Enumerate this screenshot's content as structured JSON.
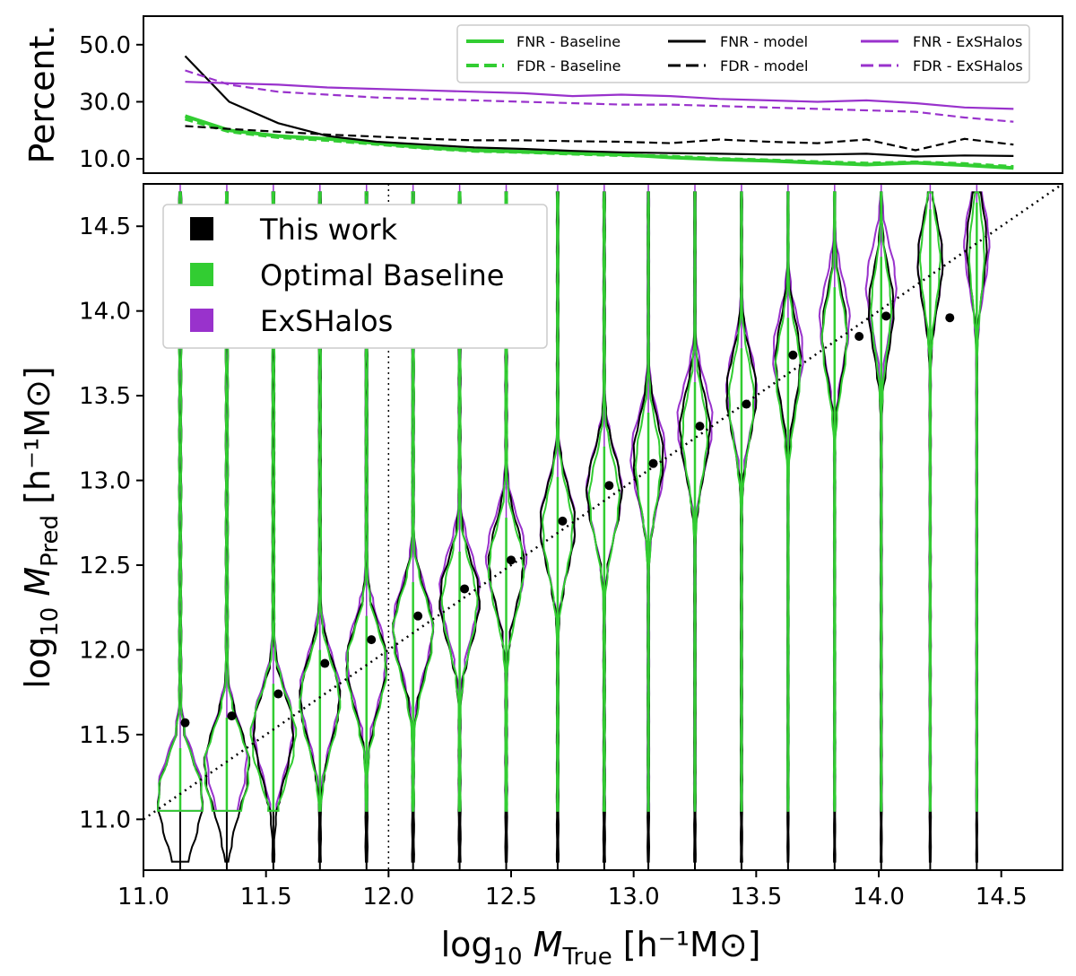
{
  "chart_data": [
    {
      "type": "line",
      "ylabel": "Percent.",
      "xlim": [
        11.0,
        14.75
      ],
      "ylim": [
        5.0,
        60.0
      ],
      "yticks": [
        "10.0",
        "30.0",
        "50.0"
      ],
      "legend": {
        "placement": "top-right",
        "columns": 3
      },
      "colors": {
        "baseline": "#32CD32",
        "model": "#000000",
        "exshalos": "#9932CC"
      },
      "series": [
        {
          "name": "FNR - Baseline",
          "color": "#32CD32",
          "style": "solid",
          "x": [
            11.17,
            11.35,
            11.55,
            11.75,
            11.95,
            12.15,
            12.35,
            12.55,
            12.75,
            12.95,
            13.15,
            13.35,
            13.55,
            13.75,
            13.95,
            14.15,
            14.35,
            14.55
          ],
          "y": [
            25.0,
            20.0,
            18.0,
            17.0,
            15.5,
            14.0,
            13.0,
            12.5,
            12.0,
            11.5,
            10.5,
            9.8,
            9.3,
            8.6,
            8.0,
            8.6,
            7.8,
            6.8
          ]
        },
        {
          "name": "FDR - Baseline",
          "color": "#32CD32",
          "style": "dashed",
          "x": [
            11.17,
            11.35,
            11.55,
            11.75,
            11.95,
            12.15,
            12.35,
            12.55,
            12.75,
            12.95,
            13.15,
            13.35,
            13.55,
            13.75,
            13.95,
            14.15,
            14.35,
            14.55
          ],
          "y": [
            24.0,
            19.6,
            17.6,
            16.6,
            15.2,
            13.8,
            12.8,
            12.4,
            11.8,
            11.3,
            10.8,
            10.0,
            9.5,
            8.9,
            8.4,
            8.8,
            8.2,
            7.2
          ]
        },
        {
          "name": "FNR - model",
          "color": "#000000",
          "style": "solid",
          "x": [
            11.17,
            11.35,
            11.55,
            11.75,
            11.95,
            12.15,
            12.35,
            12.55,
            12.75,
            12.95,
            13.15,
            13.35,
            13.55,
            13.75,
            13.95,
            14.15,
            14.35,
            14.55
          ],
          "y": [
            46.0,
            30.0,
            22.5,
            18.0,
            16.0,
            15.0,
            14.0,
            13.5,
            12.8,
            12.3,
            12.0,
            11.8,
            11.5,
            11.5,
            11.8,
            10.8,
            11.2,
            11.0
          ]
        },
        {
          "name": "FDR - model",
          "color": "#000000",
          "style": "dashed",
          "x": [
            11.17,
            11.35,
            11.55,
            11.75,
            11.95,
            12.15,
            12.35,
            12.55,
            12.75,
            12.95,
            13.15,
            13.35,
            13.55,
            13.75,
            13.95,
            14.15,
            14.35,
            14.55
          ],
          "y": [
            21.5,
            20.5,
            19.5,
            18.5,
            17.8,
            17.0,
            16.5,
            16.5,
            16.2,
            16.0,
            15.5,
            16.8,
            16.0,
            15.5,
            16.8,
            13.0,
            17.0,
            15.0
          ]
        },
        {
          "name": "FNR - ExSHalos",
          "color": "#9932CC",
          "style": "solid",
          "x": [
            11.17,
            11.35,
            11.55,
            11.75,
            11.95,
            12.15,
            12.35,
            12.55,
            12.75,
            12.95,
            13.15,
            13.35,
            13.55,
            13.75,
            13.95,
            14.15,
            14.35,
            14.55
          ],
          "y": [
            37.0,
            36.5,
            36.0,
            35.0,
            34.5,
            34.0,
            33.5,
            33.0,
            32.0,
            32.5,
            32.0,
            31.0,
            30.5,
            30.0,
            30.5,
            29.5,
            28.0,
            27.5
          ]
        },
        {
          "name": "FDR - ExSHalos",
          "color": "#9932CC",
          "style": "dashed",
          "x": [
            11.17,
            11.35,
            11.55,
            11.75,
            11.95,
            12.15,
            12.35,
            12.55,
            12.75,
            12.95,
            13.15,
            13.35,
            13.55,
            13.75,
            13.95,
            14.15,
            14.35,
            14.55
          ],
          "y": [
            41.0,
            36.0,
            33.5,
            32.5,
            31.5,
            31.0,
            30.5,
            30.0,
            29.5,
            29.0,
            29.0,
            28.5,
            28.0,
            27.5,
            27.0,
            26.5,
            24.5,
            23.0
          ]
        }
      ]
    },
    {
      "type": "violin",
      "xlabel_text": "log",
      "xlabel_sub": "10",
      "xlabel_mid": " M",
      "xlabel_msub": "True",
      "xlabel_units": " [h⁻¹M⊙]",
      "ylabel_text": "log",
      "ylabel_sub": "10",
      "ylabel_mid": " M",
      "ylabel_msub": "Pred",
      "ylabel_units": " [h⁻¹M⊙]",
      "xlim": [
        11.0,
        14.75
      ],
      "ylim": [
        10.7,
        14.75
      ],
      "xticks": [
        "11.0",
        "11.5",
        "12.0",
        "12.5",
        "13.0",
        "13.5",
        "14.0",
        "14.5"
      ],
      "yticks": [
        "11.0",
        "11.5",
        "12.0",
        "12.5",
        "13.0",
        "13.5",
        "14.0",
        "14.5"
      ],
      "reference_line": {
        "style": "dotted",
        "slope": 1,
        "from": [
          11.0,
          11.0
        ],
        "to": [
          14.75,
          14.75
        ]
      },
      "vertical_marker": {
        "x": 12.0,
        "style": "dotted"
      },
      "legend": {
        "placement": "top-left",
        "entries": [
          {
            "label": "This work",
            "color": "#000000"
          },
          {
            "label": "Optimal Baseline",
            "color": "#32CD32"
          },
          {
            "label": "ExSHalos",
            "color": "#9932CC"
          }
        ]
      },
      "bins": [
        11.15,
        11.34,
        11.53,
        11.72,
        11.91,
        12.1,
        12.29,
        12.48,
        12.69,
        12.88,
        13.06,
        13.25,
        13.44,
        13.63,
        13.82,
        14.01,
        14.21,
        14.4
      ],
      "medians_this_work": [
        {
          "x": 11.17,
          "y": 11.57
        },
        {
          "x": 11.36,
          "y": 11.61
        },
        {
          "x": 11.55,
          "y": 11.74
        },
        {
          "x": 11.74,
          "y": 11.92
        },
        {
          "x": 11.93,
          "y": 12.06
        },
        {
          "x": 12.12,
          "y": 12.2
        },
        {
          "x": 12.31,
          "y": 12.36
        },
        {
          "x": 12.5,
          "y": 12.53
        },
        {
          "x": 12.71,
          "y": 12.76
        },
        {
          "x": 12.9,
          "y": 12.97
        },
        {
          "x": 13.08,
          "y": 13.1
        },
        {
          "x": 13.27,
          "y": 13.32
        },
        {
          "x": 13.46,
          "y": 13.45
        },
        {
          "x": 13.65,
          "y": 13.74
        },
        {
          "x": 13.92,
          "y": 13.85
        },
        {
          "x": 14.03,
          "y": 13.97
        },
        {
          "x": 14.29,
          "y": 13.96
        }
      ],
      "centers_baseline": [
        11.12,
        11.3,
        11.5,
        11.7,
        11.9,
        12.1,
        12.28,
        12.48,
        12.72,
        12.9,
        13.1,
        13.28,
        13.48,
        13.66,
        13.84,
        14.02,
        14.3,
        14.34
      ],
      "centers_model": [
        11.12,
        11.32,
        11.52,
        11.72,
        11.92,
        12.12,
        12.3,
        12.52,
        12.74,
        12.94,
        13.14,
        13.3,
        13.52,
        13.72,
        13.88,
        14.02,
        14.3,
        14.4
      ],
      "centers_exshalos": [
        11.15,
        11.35,
        11.55,
        11.75,
        11.95,
        12.15,
        12.35,
        12.55,
        12.75,
        12.95,
        13.15,
        13.35,
        13.55,
        13.75,
        13.95,
        14.15,
        14.3,
        14.4
      ],
      "widths": {
        "baseline": [
          0.09,
          0.09,
          0.09,
          0.08,
          0.08,
          0.08,
          0.07,
          0.07,
          0.06,
          0.06,
          0.05,
          0.05,
          0.05,
          0.05,
          0.05,
          0.04,
          0.04,
          0.03
        ],
        "model": [
          0.09,
          0.09,
          0.08,
          0.08,
          0.08,
          0.08,
          0.08,
          0.07,
          0.07,
          0.07,
          0.06,
          0.06,
          0.06,
          0.05,
          0.05,
          0.05,
          0.05,
          0.04
        ],
        "exshalos": [
          0.09,
          0.08,
          0.08,
          0.08,
          0.08,
          0.08,
          0.08,
          0.08,
          0.07,
          0.07,
          0.07,
          0.07,
          0.06,
          0.06,
          0.06,
          0.06,
          0.05,
          0.05
        ]
      }
    }
  ]
}
